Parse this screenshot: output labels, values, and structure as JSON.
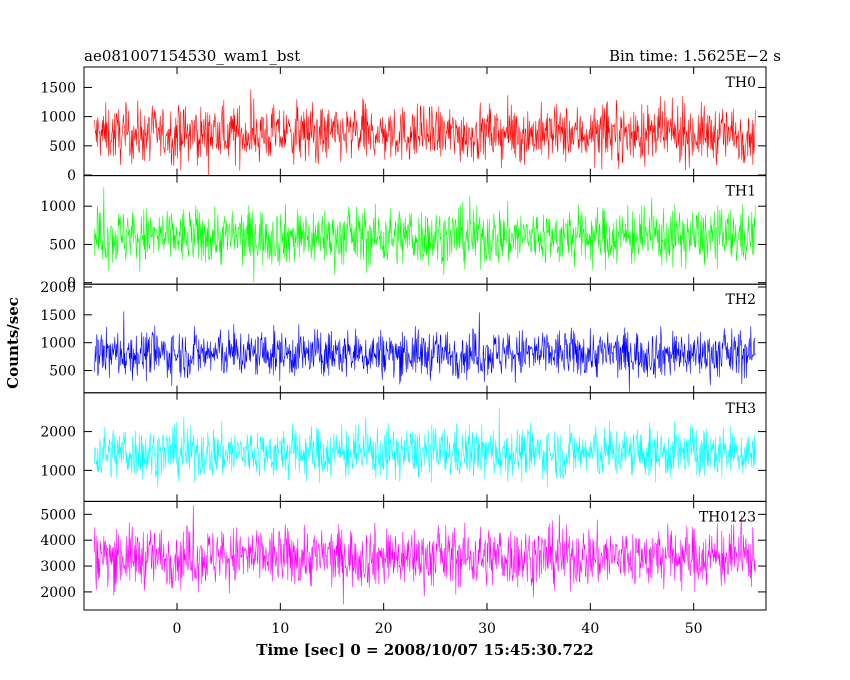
{
  "chart_data": {
    "type": "line",
    "title": "ae081007154530_wam1_bst",
    "subtitle": "Bin time: 1.5625E−2 s",
    "xlabel": "Time [sec] 0 = 2008/10/07 15:45:30.722",
    "ylabel": "Counts/sec",
    "xlim": [
      -9,
      57
    ],
    "xticks": [
      0,
      10,
      20,
      30,
      40,
      50
    ],
    "xtick_labels": [
      "0",
      "10",
      "20",
      "30",
      "40",
      "50"
    ],
    "data_x_range": [
      -8,
      56
    ],
    "grid": false,
    "panels": [
      {
        "name": "TH0",
        "color": "#ff0000",
        "ylim": [
          -10,
          1850
        ],
        "yticks": [
          0,
          500,
          1000,
          1500
        ],
        "ytick_labels": [
          "0",
          "500",
          "1000",
          "1500"
        ],
        "baseline": 700,
        "spread": 430,
        "min": 0,
        "max": 1850
      },
      {
        "name": "TH1",
        "color": "#00ff00",
        "ylim": [
          -20,
          1400
        ],
        "yticks": [
          0,
          500,
          1000
        ],
        "ytick_labels": [
          "0",
          "500",
          "1000"
        ],
        "baseline": 600,
        "spread": 340,
        "min": 0,
        "max": 1400
      },
      {
        "name": "TH2",
        "color": "#0000ff",
        "ylim": [
          100,
          2050
        ],
        "yticks": [
          500,
          1000,
          1500,
          2000
        ],
        "ytick_labels": [
          "500",
          "1000",
          "1500",
          "2000"
        ],
        "baseline": 800,
        "spread": 390,
        "min": 100,
        "max": 2050
      },
      {
        "name": "TH3",
        "color": "#00ffff",
        "ylim": [
          200,
          3000
        ],
        "yticks": [
          1000,
          2000
        ],
        "ytick_labels": [
          "1000",
          "2000"
        ],
        "baseline": 1450,
        "spread": 600,
        "min": 200,
        "max": 3000
      },
      {
        "name": "TH0123",
        "color": "#ff00ff",
        "ylim": [
          1300,
          5500
        ],
        "yticks": [
          2000,
          3000,
          4000,
          5000
        ],
        "ytick_labels": [
          "2000",
          "3000",
          "4000",
          "5000"
        ],
        "baseline": 3350,
        "spread": 1050,
        "min": 1300,
        "max": 5500
      }
    ]
  }
}
